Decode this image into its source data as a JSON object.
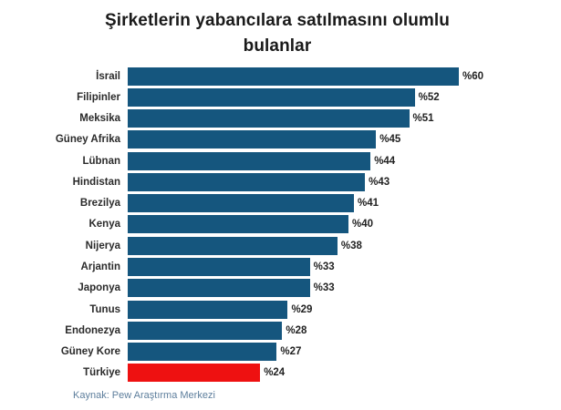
{
  "title": "Şirketlerin yabancılara satılmasını olumlu bulanlar",
  "source": "Kaynak: Pew Araştırma Merkezi",
  "colors": {
    "background": "#FFFFFF",
    "bar": "#15567E",
    "highlight_bar": "#EE1111",
    "title_text": "#1A1A1A",
    "category_text": "#2B2B2B",
    "value_text": "#222222",
    "source_text": "#5D7E9C"
  },
  "chart_data": {
    "type": "bar",
    "orientation": "horizontal",
    "title": "Şirketlerin yabancılara satılmasını olumlu bulanlar",
    "source": "Kaynak: Pew Araştırma Merkezi",
    "categories": [
      "İsrail",
      "Filipinler",
      "Meksika",
      "Güney Afrika",
      "Lübnan",
      "Hindistan",
      "Brezilya",
      "Kenya",
      "Nijerya",
      "Arjantin",
      "Japonya",
      "Tunus",
      "Endonezya",
      "Güney Kore",
      "Türkiye"
    ],
    "values": [
      60,
      52,
      51,
      45,
      44,
      43,
      41,
      40,
      38,
      33,
      33,
      29,
      28,
      27,
      24
    ],
    "value_labels": [
      "%60",
      "%52",
      "%51",
      "%45",
      "%44",
      "%43",
      "%41",
      "%40",
      "%38",
      "%33",
      "%33",
      "%29",
      "%28",
      "%27",
      "%24"
    ],
    "value_prefix": "%",
    "xmax": 60,
    "highlight_category": "Türkiye",
    "grid": false,
    "legend": false
  }
}
